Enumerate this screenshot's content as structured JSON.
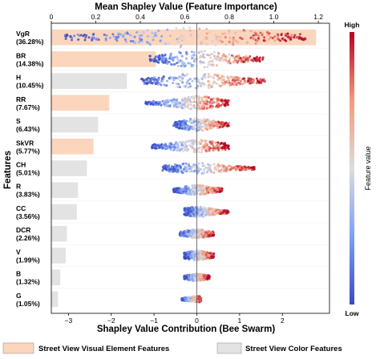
{
  "chart_data": {
    "type": "bar",
    "title": "",
    "top_axis": {
      "label": "Mean Shapley Value (Feature Importance)",
      "ticks": [
        0,
        0.2,
        0.4,
        0.6,
        0.8,
        1.0,
        1.2
      ],
      "tick_labels": [
        "0",
        "0.2",
        "0.4",
        "0.6",
        "0.8",
        "1.0",
        "1.2"
      ],
      "range": [
        0,
        1.25
      ]
    },
    "bottom_axis": {
      "label": "Shapley Value Contribution (Bee Swarm)",
      "ticks": [
        -3,
        -2,
        -1,
        0,
        1,
        2
      ],
      "tick_labels": [
        "−3",
        "−2",
        "−1",
        "0",
        "1",
        "2"
      ],
      "range": [
        -3.4,
        3.1
      ]
    },
    "ylabel": "Features",
    "features": [
      {
        "name": "VgR",
        "pct": "(36.28%)",
        "importance": 1.19,
        "group": "visual",
        "swarm_min": -3.1,
        "swarm_max": 2.55,
        "spread": 1.0
      },
      {
        "name": "BR",
        "pct": "(14.38%)",
        "importance": 0.47,
        "group": "visual",
        "swarm_min": -1.1,
        "swarm_max": 1.55,
        "spread": 0.8
      },
      {
        "name": "H",
        "pct": "(10.45%)",
        "importance": 0.34,
        "group": "color",
        "swarm_min": -1.3,
        "swarm_max": 1.6,
        "spread": 0.7
      },
      {
        "name": "RR",
        "pct": "(7.67%)",
        "importance": 0.26,
        "group": "visual",
        "swarm_min": -1.2,
        "swarm_max": 0.75,
        "spread": 0.6
      },
      {
        "name": "S",
        "pct": "(6.43%)",
        "importance": 0.21,
        "group": "color",
        "swarm_min": -0.55,
        "swarm_max": 0.75,
        "spread": 0.55
      },
      {
        "name": "SkVR",
        "pct": "(5.77%)",
        "importance": 0.19,
        "group": "visual",
        "swarm_min": -1.05,
        "swarm_max": 0.75,
        "spread": 0.6
      },
      {
        "name": "CH",
        "pct": "(5.01%)",
        "importance": 0.16,
        "group": "color",
        "swarm_min": -0.8,
        "swarm_max": 1.35,
        "spread": 0.5
      },
      {
        "name": "R",
        "pct": "(3.83%)",
        "importance": 0.12,
        "group": "color",
        "swarm_min": -0.55,
        "swarm_max": 0.6,
        "spread": 0.4
      },
      {
        "name": "CC",
        "pct": "(3.56%)",
        "importance": 0.115,
        "group": "color",
        "swarm_min": -0.3,
        "swarm_max": 0.75,
        "spread": 0.45
      },
      {
        "name": "DCR",
        "pct": "(2.26%)",
        "importance": 0.07,
        "group": "color",
        "swarm_min": -0.4,
        "swarm_max": 0.4,
        "spread": 0.35
      },
      {
        "name": "V",
        "pct": "(1.99%)",
        "importance": 0.065,
        "group": "color",
        "swarm_min": -0.3,
        "swarm_max": 0.4,
        "spread": 0.4
      },
      {
        "name": "B",
        "pct": "(1.32%)",
        "importance": 0.04,
        "group": "color",
        "swarm_min": -0.3,
        "swarm_max": 0.3,
        "spread": 0.25
      },
      {
        "name": "G",
        "pct": "(1.05%)",
        "importance": 0.03,
        "group": "color",
        "swarm_min": -0.35,
        "swarm_max": 0.1,
        "spread": 0.2
      }
    ],
    "colorbar": {
      "label": "Feature value",
      "high": "High",
      "low": "Low"
    },
    "legend": {
      "placement": "bottom",
      "items": [
        {
          "label": "Street View Visual Element Features",
          "group": "visual"
        },
        {
          "label": "Street View Color Features",
          "group": "color"
        }
      ]
    },
    "colors": {
      "visual": "#fcd5bd",
      "color": "#e3e3e3",
      "low": "#3b4cc0",
      "mid": "#dddcdc",
      "high": "#b40426",
      "zero_line": "#555555"
    }
  }
}
